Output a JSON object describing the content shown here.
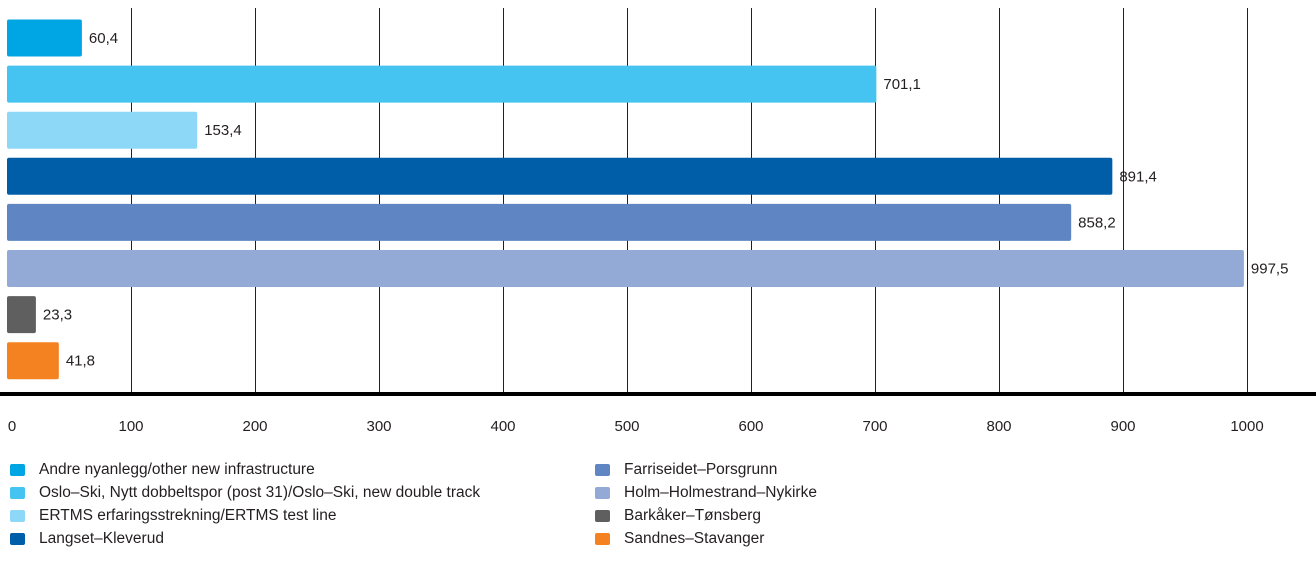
{
  "chart_data": {
    "type": "bar",
    "orientation": "horizontal",
    "title": "",
    "xlabel": "",
    "ylabel": "",
    "xlim": [
      0,
      1050
    ],
    "ticks": [
      "0",
      "100",
      "200",
      "300",
      "400",
      "500",
      "600",
      "700",
      "800",
      "900",
      "1000"
    ],
    "grid": true,
    "legend_position": "bottom",
    "series": [
      {
        "name": "Andre nyanlegg/other new infrastructure",
        "value": 60.4,
        "label": "60,4",
        "color": "#00a6e3"
      },
      {
        "name": "Oslo–Ski, Nytt dobbeltspor (post 31)/Oslo–Ski, new double track",
        "value": 701.1,
        "label": "701,1",
        "color": "#45c4f1"
      },
      {
        "name": "ERTMS erfaringsstrekning/ERTMS test line",
        "value": 153.4,
        "label": "153,4",
        "color": "#8dd8f7"
      },
      {
        "name": "Langset–Kleverud",
        "value": 891.4,
        "label": "891,4",
        "color": "#005ea8"
      },
      {
        "name": "Farriseidet–Porsgrunn",
        "value": 858.2,
        "label": "858,2",
        "color": "#5f86c2"
      },
      {
        "name": "Holm–Holmestrand–Nykirke",
        "value": 997.5,
        "label": "997,5",
        "color": "#93aad6"
      },
      {
        "name": "Barkåker–Tønsberg",
        "value": 23.3,
        "label": "23,3",
        "color": "#5f5f5f"
      },
      {
        "name": "Sandnes–Stavanger",
        "value": 41.8,
        "label": "41,8",
        "color": "#f58220"
      }
    ]
  }
}
